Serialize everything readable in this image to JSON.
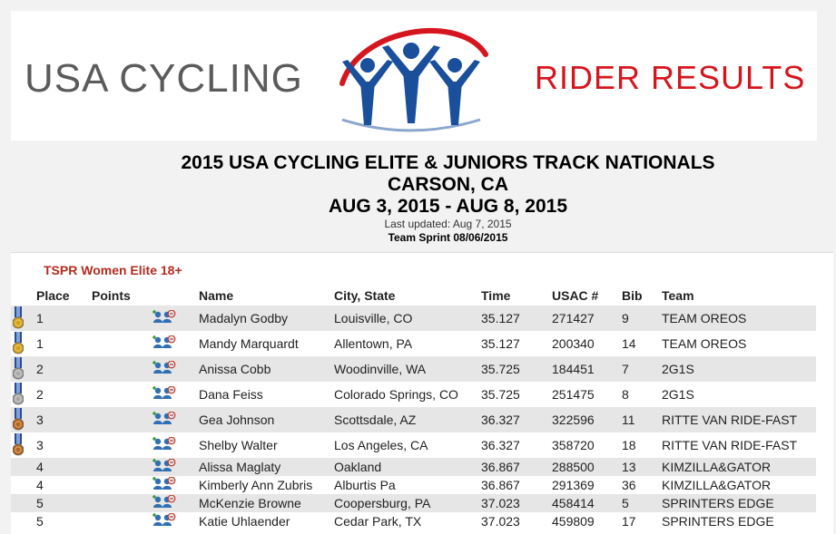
{
  "banner": {
    "left_text": "USA CYCLING",
    "right_text": "RIDER RESULTS",
    "brand_red": "#d6161e",
    "brand_blue": "#1a4f9c"
  },
  "event": {
    "title": "2015 USA CYCLING ELITE & JUNIORS TRACK NATIONALS",
    "location": "CARSON, CA",
    "dates": "AUG 3, 2015 - AUG 8, 2015",
    "last_updated": "Last updated: Aug 7, 2015",
    "race": "Team Sprint 08/06/2015"
  },
  "category": "TSPR Women Elite 18+",
  "columns": {
    "place": "Place",
    "points": "Points",
    "name": "Name",
    "city": "City, State",
    "time": "Time",
    "usac": "USAC #",
    "bib": "Bib",
    "team": "Team"
  },
  "rows": [
    {
      "medal": "gold",
      "place": "1",
      "name": "Madalyn Godby",
      "city": "Louisville, CO",
      "time": "35.127",
      "usac": "271427",
      "bib": "9",
      "team": "TEAM OREOS"
    },
    {
      "medal": "gold",
      "place": "1",
      "name": "Mandy Marquardt",
      "city": "Allentown, PA",
      "time": "35.127",
      "usac": "200340",
      "bib": "14",
      "team": "TEAM OREOS"
    },
    {
      "medal": "silver",
      "place": "2",
      "name": "Anissa Cobb",
      "city": "Woodinville, WA",
      "time": "35.725",
      "usac": "184451",
      "bib": "7",
      "team": "2G1S"
    },
    {
      "medal": "silver",
      "place": "2",
      "name": "Dana Feiss",
      "city": "Colorado Springs, CO",
      "time": "35.725",
      "usac": "251475",
      "bib": "8",
      "team": "2G1S"
    },
    {
      "medal": "bronze",
      "place": "3",
      "name": "Gea Johnson",
      "city": "Scottsdale, AZ",
      "time": "36.327",
      "usac": "322596",
      "bib": "11",
      "team": "RITTE VAN RIDE-FAST"
    },
    {
      "medal": "bronze",
      "place": "3",
      "name": "Shelby Walter",
      "city": "Los Angeles, CA",
      "time": "36.327",
      "usac": "358720",
      "bib": "18",
      "team": "RITTE VAN RIDE-FAST"
    },
    {
      "medal": "",
      "place": "4",
      "name": "Alissa Maglaty",
      "city": "Oakland",
      "time": "36.867",
      "usac": "288500",
      "bib": "13",
      "team": "KIMZILLA&GATOR"
    },
    {
      "medal": "",
      "place": "4",
      "name": "Kimberly Ann Zubris",
      "city": "Alburtis Pa",
      "time": "36.867",
      "usac": "291369",
      "bib": "36",
      "team": "KIMZILLA&GATOR"
    },
    {
      "medal": "",
      "place": "5",
      "name": "McKenzie Browne",
      "city": "Coopersburg, PA",
      "time": "37.023",
      "usac": "458414",
      "bib": "5",
      "team": "SPRINTERS EDGE"
    },
    {
      "medal": "",
      "place": "5",
      "name": "Katie Uhlaender",
      "city": "Cedar Park, TX",
      "time": "37.023",
      "usac": "459809",
      "bib": "17",
      "team": "SPRINTERS EDGE"
    }
  ]
}
